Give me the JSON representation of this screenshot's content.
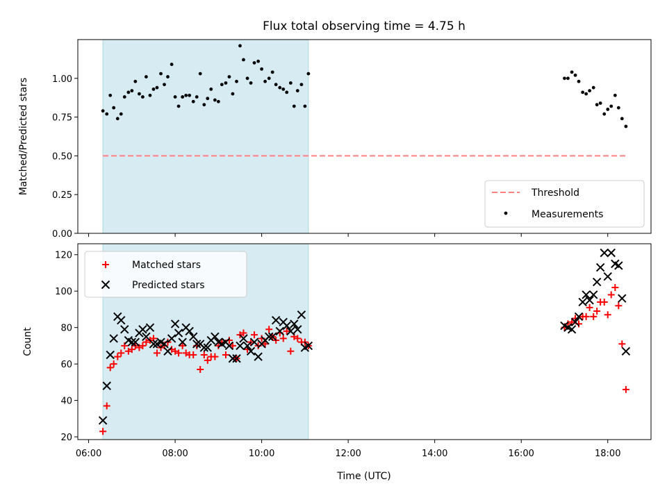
{
  "chart_data": {
    "title": "Flux total observing time = 4.75 h",
    "shaded_region_hours": [
      6.33,
      11.08
    ],
    "shade_color": "#add8e6",
    "x_axis": {
      "label": "Time (UTC)",
      "lim_hours": [
        5.75,
        19.0
      ],
      "ticks": [
        6,
        8,
        10,
        12,
        14,
        16,
        18
      ],
      "tick_labels": [
        "06:00",
        "08:00",
        "10:00",
        "12:00",
        "14:00",
        "16:00",
        "18:00"
      ]
    },
    "panels": [
      {
        "type": "scatter",
        "ylabel": "Matched/Predicted stars",
        "ylim": [
          0,
          1.25
        ],
        "yticks": [
          0,
          0.25,
          0.5,
          0.75,
          1.0
        ],
        "ytick_labels": [
          "0.00",
          "0.25",
          "0.50",
          "0.75",
          "1.00"
        ],
        "legend_position": "lower-right",
        "threshold": {
          "name": "Threshold",
          "value": 0.5,
          "x_range_hours": [
            6.33,
            18.42
          ],
          "color": "#ff8080"
        },
        "series": [
          {
            "name": "Measurements",
            "color": "#000000",
            "x": [
              6.33,
              6.42,
              6.5,
              6.58,
              6.67,
              6.75,
              6.83,
              6.92,
              7.0,
              7.08,
              7.17,
              7.25,
              7.33,
              7.42,
              7.5,
              7.58,
              7.67,
              7.75,
              7.83,
              7.92,
              8.0,
              8.08,
              8.17,
              8.25,
              8.33,
              8.42,
              8.5,
              8.58,
              8.67,
              8.75,
              8.83,
              8.92,
              9.0,
              9.08,
              9.17,
              9.25,
              9.33,
              9.42,
              9.5,
              9.58,
              9.67,
              9.75,
              9.83,
              9.92,
              10.0,
              10.08,
              10.17,
              10.25,
              10.33,
              10.42,
              10.5,
              10.58,
              10.67,
              10.75,
              10.83,
              10.92,
              11.0,
              11.08,
              17.0,
              17.08,
              17.17,
              17.25,
              17.33,
              17.42,
              17.5,
              17.58,
              17.67,
              17.75,
              17.83,
              17.92,
              18.0,
              18.08,
              18.17,
              18.25,
              18.33,
              18.42
            ],
            "y": [
              0.79,
              0.77,
              0.89,
              0.81,
              0.74,
              0.77,
              0.88,
              0.91,
              0.92,
              0.98,
              0.9,
              0.88,
              1.01,
              0.89,
              0.93,
              0.94,
              1.03,
              0.96,
              1.01,
              1.09,
              0.88,
              0.82,
              0.88,
              0.89,
              0.89,
              0.85,
              0.88,
              1.03,
              0.83,
              0.87,
              0.93,
              0.86,
              0.85,
              0.96,
              0.97,
              1.01,
              0.9,
              0.98,
              1.21,
              1.12,
              1.0,
              0.97,
              1.1,
              1.11,
              1.06,
              0.98,
              1.0,
              1.04,
              0.96,
              0.94,
              0.93,
              0.91,
              0.97,
              0.82,
              0.92,
              0.96,
              0.82,
              1.03,
              1.0,
              1.0,
              1.04,
              1.02,
              0.98,
              0.91,
              0.9,
              0.92,
              0.94,
              0.83,
              0.84,
              0.77,
              0.8,
              0.82,
              0.89,
              0.81,
              0.74,
              0.69
            ]
          }
        ]
      },
      {
        "type": "scatter",
        "ylabel": "Count",
        "ylim": [
          18.5,
          126
        ],
        "yticks": [
          20,
          40,
          60,
          80,
          100,
          120
        ],
        "ytick_labels": [
          "20",
          "40",
          "60",
          "80",
          "100",
          "120"
        ],
        "legend_position": "upper-left",
        "series": [
          {
            "name": "Matched stars",
            "marker": "plus",
            "color": "#ff0000",
            "x": [
              6.33,
              6.42,
              6.5,
              6.58,
              6.67,
              6.75,
              6.83,
              6.92,
              7.0,
              7.08,
              7.17,
              7.25,
              7.33,
              7.42,
              7.5,
              7.58,
              7.67,
              7.75,
              7.83,
              7.92,
              8.0,
              8.08,
              8.17,
              8.25,
              8.33,
              8.42,
              8.5,
              8.58,
              8.67,
              8.75,
              8.83,
              8.92,
              9.0,
              9.08,
              9.17,
              9.25,
              9.33,
              9.42,
              9.5,
              9.58,
              9.67,
              9.75,
              9.83,
              9.92,
              10.0,
              10.08,
              10.17,
              10.25,
              10.33,
              10.42,
              10.5,
              10.58,
              10.67,
              10.75,
              10.83,
              10.92,
              11.0,
              11.08,
              17.0,
              17.08,
              17.17,
              17.25,
              17.33,
              17.42,
              17.5,
              17.58,
              17.67,
              17.75,
              17.83,
              17.92,
              18.0,
              18.08,
              18.17,
              18.25,
              18.33,
              18.42
            ],
            "y": [
              23,
              37,
              58,
              60,
              64,
              66,
              70,
              67,
              68,
              70,
              69,
              70,
              72,
              73,
              74,
              66,
              69,
              70,
              72,
              68,
              67,
              66,
              70,
              66,
              65,
              65,
              70,
              57,
              65,
              62,
              64,
              64,
              70,
              72,
              65,
              73,
              70,
              63,
              76,
              77,
              68,
              72,
              76,
              70,
              74,
              71,
              79,
              75,
              73,
              77,
              74,
              78,
              67,
              75,
              74,
              72,
              72,
              70,
              80,
              82,
              83,
              85,
              82,
              86,
              86,
              91,
              86,
              89,
              94,
              94,
              87,
              98,
              102,
              92,
              71,
              46
            ]
          },
          {
            "name": "Predicted stars",
            "marker": "x",
            "color": "#000000",
            "x": [
              6.33,
              6.42,
              6.5,
              6.58,
              6.67,
              6.75,
              6.83,
              6.92,
              7.0,
              7.08,
              7.17,
              7.25,
              7.33,
              7.42,
              7.5,
              7.58,
              7.67,
              7.75,
              7.83,
              7.92,
              8.0,
              8.08,
              8.17,
              8.25,
              8.33,
              8.42,
              8.5,
              8.58,
              8.67,
              8.75,
              8.83,
              8.92,
              9.0,
              9.08,
              9.17,
              9.25,
              9.33,
              9.42,
              9.5,
              9.58,
              9.67,
              9.75,
              9.83,
              9.92,
              10.0,
              10.08,
              10.17,
              10.25,
              10.33,
              10.42,
              10.5,
              10.58,
              10.67,
              10.75,
              10.83,
              10.92,
              11.0,
              11.08,
              17.0,
              17.08,
              17.17,
              17.25,
              17.33,
              17.42,
              17.5,
              17.58,
              17.67,
              17.75,
              17.83,
              17.92,
              18.0,
              18.08,
              18.17,
              18.25,
              18.33,
              18.42
            ],
            "y": [
              29,
              48,
              65,
              74,
              86,
              84,
              79,
              73,
              72,
              72,
              77,
              79,
              75,
              80,
              71,
              71,
              72,
              71,
              67,
              74,
              82,
              77,
              72,
              80,
              78,
              75,
              71,
              71,
              69,
              69,
              73,
              75,
              72,
              71,
              72,
              70,
              63,
              63,
              70,
              74,
              70,
              67,
              72,
              64,
              71,
              73,
              75,
              75,
              84,
              78,
              83,
              81,
              78,
              82,
              79,
              87,
              69,
              70,
              81,
              80,
              79,
              83,
              86,
              94,
              98,
              95,
              98,
              105,
              113,
              121,
              108,
              121,
              115,
              114,
              96,
              67
            ]
          }
        ]
      }
    ]
  }
}
